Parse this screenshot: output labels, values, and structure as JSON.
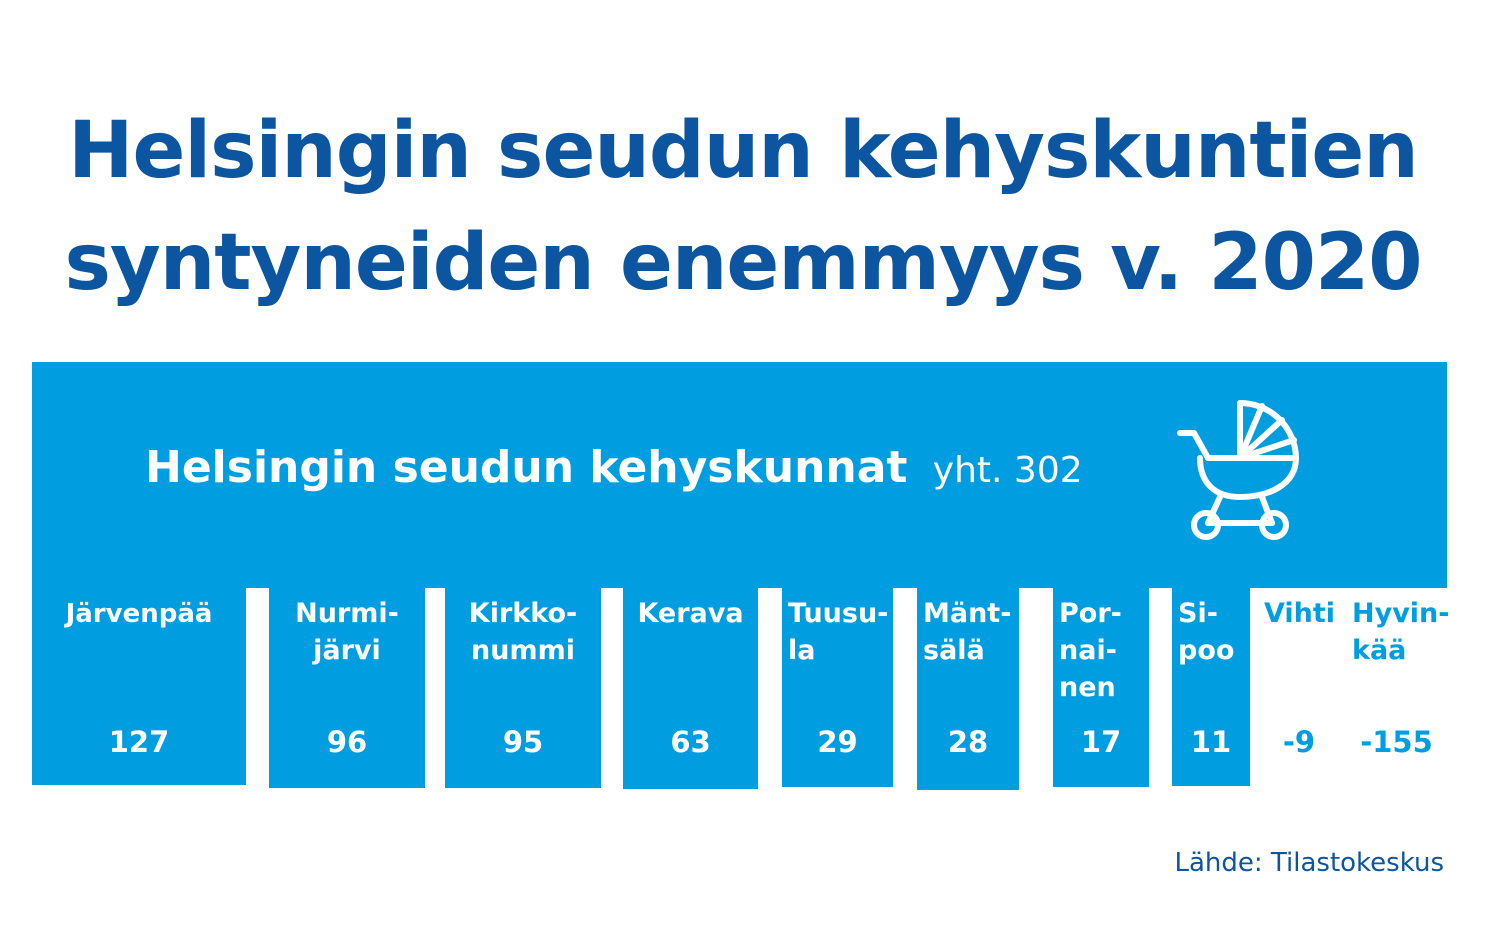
{
  "title_line1": "Helsingin seudun kehyskuntien",
  "title_line2": "syntyneiden enemmyys v. 2020",
  "source": "Lähde: Tilastokeskus",
  "colors": {
    "bar": "#009ee0",
    "text_dark": "#0c55a0",
    "text_light": "#ffffff"
  },
  "icon": "baby-stroller-icon",
  "chart_data": {
    "type": "bar",
    "header": "Helsingin seudun kehyskunnat",
    "total_label": "yht. 302",
    "categories": [
      [
        "Järvenpää"
      ],
      [
        "Nurmi-",
        "järvi"
      ],
      [
        "Kirkko-",
        "nummi"
      ],
      [
        "Kerava"
      ],
      [
        "Tuusu-",
        "la"
      ],
      [
        "Mänt-",
        "sälä"
      ],
      [
        "Por-",
        "nai-",
        "nen"
      ],
      [
        "Si-",
        "poo"
      ],
      [
        "Vihti"
      ],
      [
        "Hyvin-",
        "kää"
      ]
    ],
    "values": [
      127,
      96,
      95,
      63,
      29,
      28,
      17,
      11,
      -9,
      -155
    ]
  }
}
